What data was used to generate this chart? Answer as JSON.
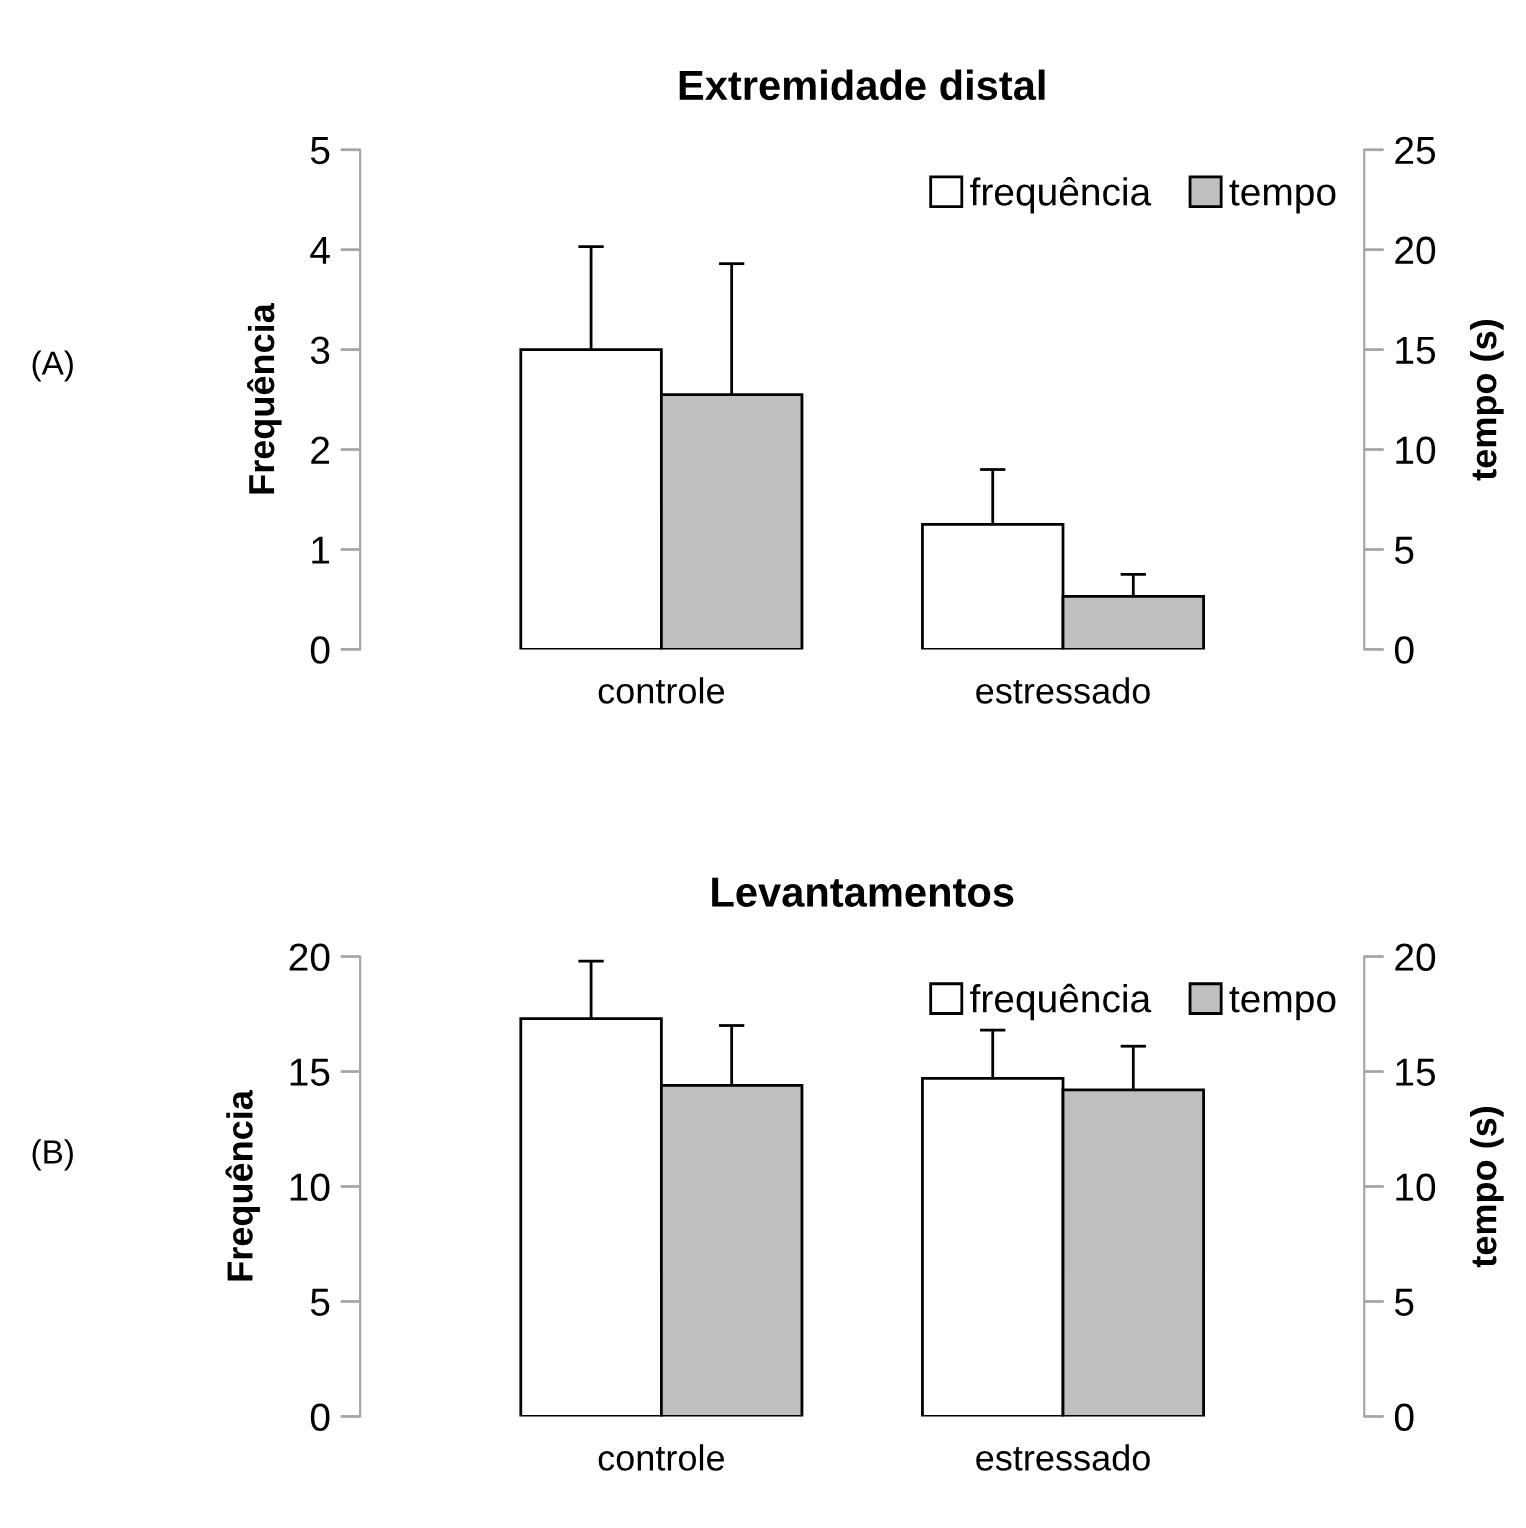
{
  "chart_data": [
    {
      "type": "bar",
      "title": "Extremidade distal",
      "ylabel": "Frequência",
      "y2label": "tempo (s)",
      "annotations": [
        "(A)"
      ],
      "categories": [
        "controle",
        "estressado"
      ],
      "series": [
        {
          "name": "frequência",
          "color": "#ffffff",
          "values": [
            3.0,
            1.25
          ],
          "errors": [
            [
              3.0,
              4.03
            ],
            [
              1.25,
              1.8
            ]
          ]
        },
        {
          "name": "tempo",
          "color": "#bfbfbf",
          "axis": "y2",
          "values": [
            12.75,
            2.65
          ],
          "errors": [
            [
              12.75,
              19.3
            ],
            [
              2.65,
              3.75
            ]
          ]
        }
      ],
      "ylim": [
        0,
        5
      ],
      "yticks": [
        0,
        1,
        2,
        3,
        4,
        5
      ],
      "y2lim": [
        0,
        25
      ],
      "y2ticks": [
        0,
        5,
        10,
        15,
        20,
        25
      ],
      "grid": false,
      "legend": "top right"
    },
    {
      "type": "bar",
      "title": "Levantamentos",
      "ylabel": "Frequência",
      "y2label": "tempo (s)",
      "annotations": [
        "(B)"
      ],
      "categories": [
        "controle",
        "estressado"
      ],
      "series": [
        {
          "name": "frequência",
          "color": "#ffffff",
          "values": [
            17.3,
            14.7
          ],
          "errors": [
            [
              17.3,
              19.8
            ],
            [
              14.7,
              16.8
            ]
          ]
        },
        {
          "name": "tempo",
          "color": "#bfbfbf",
          "axis": "y2",
          "values": [
            14.4,
            14.2
          ],
          "errors": [
            [
              14.4,
              17.0
            ],
            [
              14.2,
              16.1
            ]
          ]
        }
      ],
      "ylim": [
        0,
        20
      ],
      "yticks": [
        0,
        5,
        10,
        15,
        20
      ],
      "y2lim": [
        0,
        20
      ],
      "y2ticks": [
        0,
        5,
        10,
        15,
        20
      ],
      "grid": false,
      "legend": "top right"
    }
  ]
}
